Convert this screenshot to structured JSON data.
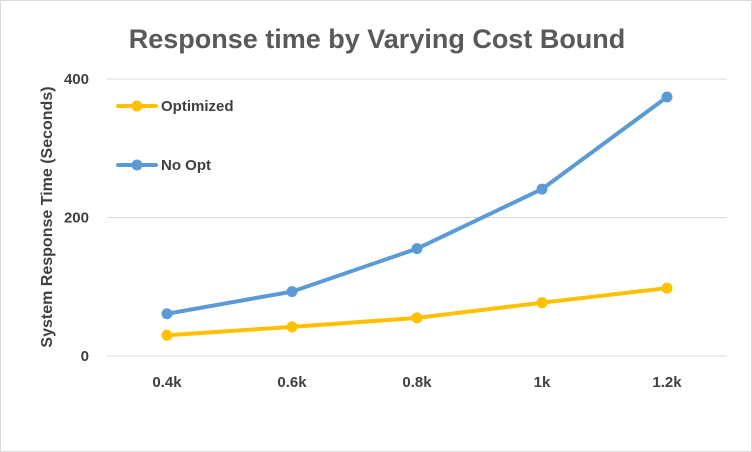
{
  "chart_data": {
    "type": "line",
    "title": "Response time by Varying Cost Bound",
    "xlabel": "",
    "ylabel": "System Response Time (Seconds)",
    "categories": [
      "0.4k",
      "0.6k",
      "0.8k",
      "1k",
      "1.2k"
    ],
    "yticks": [
      "0",
      "200",
      "400"
    ],
    "ylim": [
      0,
      400
    ],
    "grid": true,
    "legend_position": "top-left",
    "series": [
      {
        "name": "Optimized",
        "color": "#FFC000",
        "values": [
          30,
          42,
          55,
          77,
          98
        ]
      },
      {
        "name": "No Opt",
        "color": "#5B9BD5",
        "values": [
          61,
          93,
          155,
          241,
          374
        ]
      }
    ]
  }
}
